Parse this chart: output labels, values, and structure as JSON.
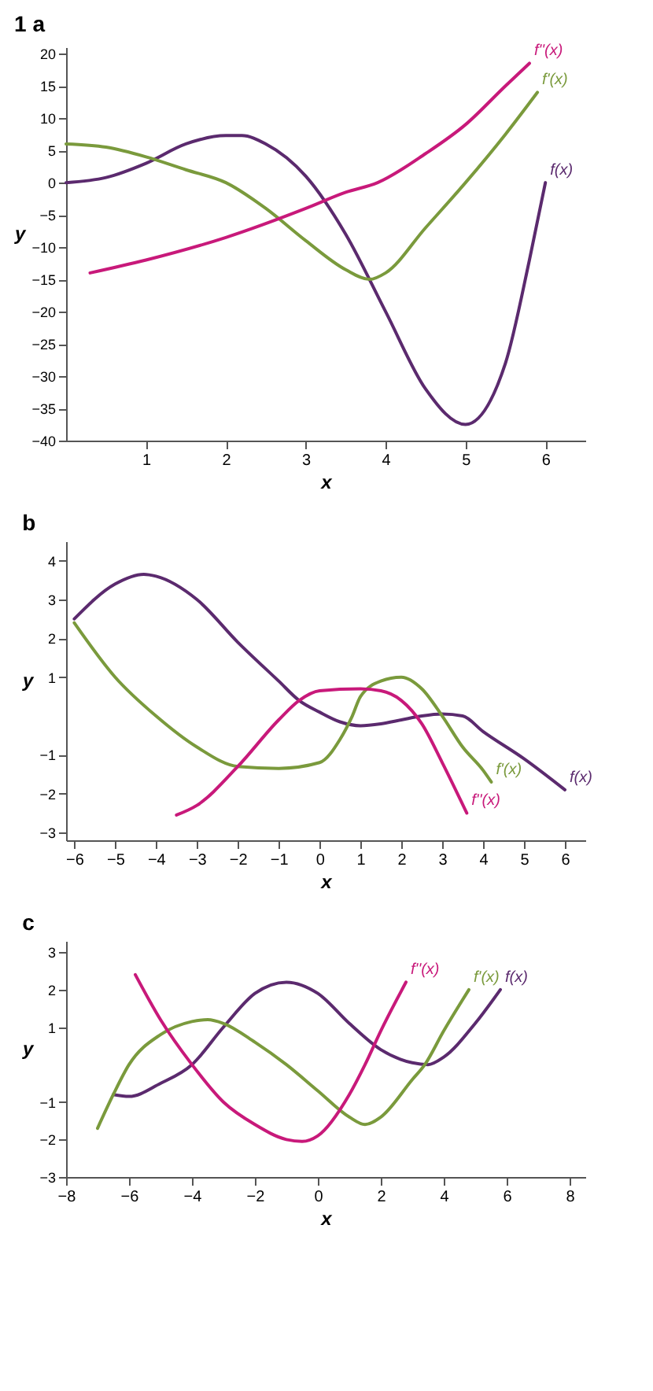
{
  "chart_data": [
    {
      "type": "line",
      "title": "1 a",
      "xlabel": "x",
      "ylabel": "y",
      "xlim": [
        0,
        6.5
      ],
      "ylim": [
        -40,
        21
      ],
      "xticks": [
        1,
        2,
        3,
        4,
        5,
        6
      ],
      "yticks": [
        -40,
        -35,
        -30,
        -25,
        -20,
        -15,
        -10,
        -5,
        0,
        5,
        10,
        15,
        20
      ],
      "grid": false,
      "legend": false,
      "marker": "none",
      "line_style": "solid",
      "series": [
        {
          "name": "f(x)",
          "color": "#5b2a6e",
          "x": [
            0,
            0.5,
            1,
            1.5,
            2,
            2.2,
            2.5,
            3,
            3.5,
            4,
            4.5,
            5,
            5.5,
            5.8,
            6
          ],
          "values": [
            0,
            0.8,
            3,
            6,
            7.3,
            7.3,
            6,
            1,
            -8,
            -20,
            -32,
            -37.5,
            -28,
            -12,
            0
          ]
        },
        {
          "name": "f'(x)",
          "color": "#7a9a3c",
          "x": [
            0,
            0.5,
            1,
            1.5,
            2,
            2.5,
            3,
            3.5,
            3.8,
            4,
            4.5,
            5,
            5.5,
            5.9
          ],
          "values": [
            6,
            5.5,
            4,
            2,
            0,
            -4,
            -9,
            -13.5,
            -15,
            -14,
            -7,
            0,
            7.5,
            14
          ]
        },
        {
          "name": "f''(x)",
          "color": "#c8197a",
          "x": [
            0.3,
            1,
            2,
            3,
            3.5,
            3.9,
            4.5,
            5,
            5.5,
            5.8
          ],
          "values": [
            -14,
            -12,
            -8.5,
            -4,
            -1.5,
            0,
            4.5,
            9,
            15,
            18.5
          ]
        }
      ]
    },
    {
      "type": "line",
      "title": "b",
      "xlabel": "x",
      "ylabel": "y",
      "xlim": [
        -6.2,
        6.5
      ],
      "ylim": [
        -3.2,
        4.5
      ],
      "xticks": [
        -6,
        -5,
        -4,
        -3,
        -2,
        -1,
        0,
        1,
        2,
        3,
        4,
        5,
        6
      ],
      "yticks": [
        -3,
        -2,
        -1,
        1,
        2,
        3,
        4
      ],
      "grid": false,
      "legend": false,
      "marker": "none",
      "line_style": "solid",
      "series": [
        {
          "name": "f(x)",
          "color": "#5b2a6e",
          "x": [
            -6,
            -5,
            -4.3,
            -4,
            -3,
            -2,
            -1,
            -0.5,
            0,
            0.5,
            1,
            1.5,
            2,
            2.5,
            3,
            3.5,
            4,
            5,
            6
          ],
          "values": [
            2.5,
            3.4,
            3.65,
            3.6,
            3,
            1.9,
            0.9,
            0.4,
            0.1,
            -0.15,
            -0.25,
            -0.2,
            -0.1,
            0,
            0.05,
            0,
            -0.4,
            -1.1,
            -1.9
          ]
        },
        {
          "name": "f'(x)",
          "color": "#7a9a3c",
          "x": [
            -6,
            -5,
            -4,
            -3,
            -2,
            -1,
            0,
            0.5,
            0.8,
            1,
            1.5,
            2,
            2.5,
            3,
            3.5,
            4,
            4.2
          ],
          "values": [
            2.4,
            1,
            0,
            -0.8,
            -1.3,
            -1.35,
            -1.2,
            -0.6,
            0,
            0.5,
            0.9,
            1,
            0.7,
            0,
            -0.8,
            -1.4,
            -1.7
          ]
        },
        {
          "name": "f''(x)",
          "color": "#c8197a",
          "x": [
            -3.5,
            -3,
            -2,
            -1,
            -0.5,
            0,
            1,
            1.5,
            2,
            2.5,
            3,
            3.6
          ],
          "values": [
            -2.55,
            -2.3,
            -1.3,
            -0.1,
            0.4,
            0.65,
            0.7,
            0.65,
            0.4,
            -0.2,
            -1.2,
            -2.5
          ]
        }
      ]
    },
    {
      "type": "line",
      "title": "c",
      "xlabel": "x",
      "ylabel": "y",
      "xlim": [
        -8,
        8.5
      ],
      "ylim": [
        -3,
        3.3
      ],
      "xticks": [
        -8,
        -6,
        -4,
        -2,
        0,
        2,
        4,
        6,
        8
      ],
      "yticks": [
        -3,
        -2,
        -1,
        1,
        2,
        3
      ],
      "grid": false,
      "legend": false,
      "marker": "none",
      "line_style": "solid",
      "series": [
        {
          "name": "f(x)",
          "color": "#5b2a6e",
          "x": [
            -6.5,
            -6,
            -5,
            -4,
            -3,
            -2,
            -1,
            0,
            1,
            2,
            3,
            3.5,
            4,
            5,
            5.8
          ],
          "values": [
            -0.8,
            -0.85,
            -0.5,
            0,
            1,
            1.9,
            2.2,
            1.9,
            1.1,
            0.4,
            0.05,
            0,
            0.2,
            1.1,
            2
          ]
        },
        {
          "name": "f'(x)",
          "color": "#7a9a3c",
          "x": [
            -7,
            -6.5,
            -6,
            -5,
            -4,
            -3.5,
            -3,
            -2,
            -1,
            0,
            1,
            1.5,
            2,
            3,
            3.4,
            4,
            4.8
          ],
          "values": [
            -1.7,
            -0.8,
            0,
            0.8,
            1.15,
            1.2,
            1.1,
            0.6,
            0,
            -0.7,
            -1.4,
            -1.6,
            -1.4,
            -0.4,
            0,
            0.9,
            2
          ]
        },
        {
          "name": "f''(x)",
          "color": "#c8197a",
          "x": [
            -5.8,
            -5,
            -4,
            -3,
            -2,
            -1,
            -0.5,
            0,
            1,
            1.5,
            2,
            2.8
          ],
          "values": [
            2.4,
            1.2,
            0,
            -1,
            -1.6,
            -2,
            -2.05,
            -1.9,
            -0.8,
            0,
            0.9,
            2.2
          ]
        }
      ]
    }
  ]
}
